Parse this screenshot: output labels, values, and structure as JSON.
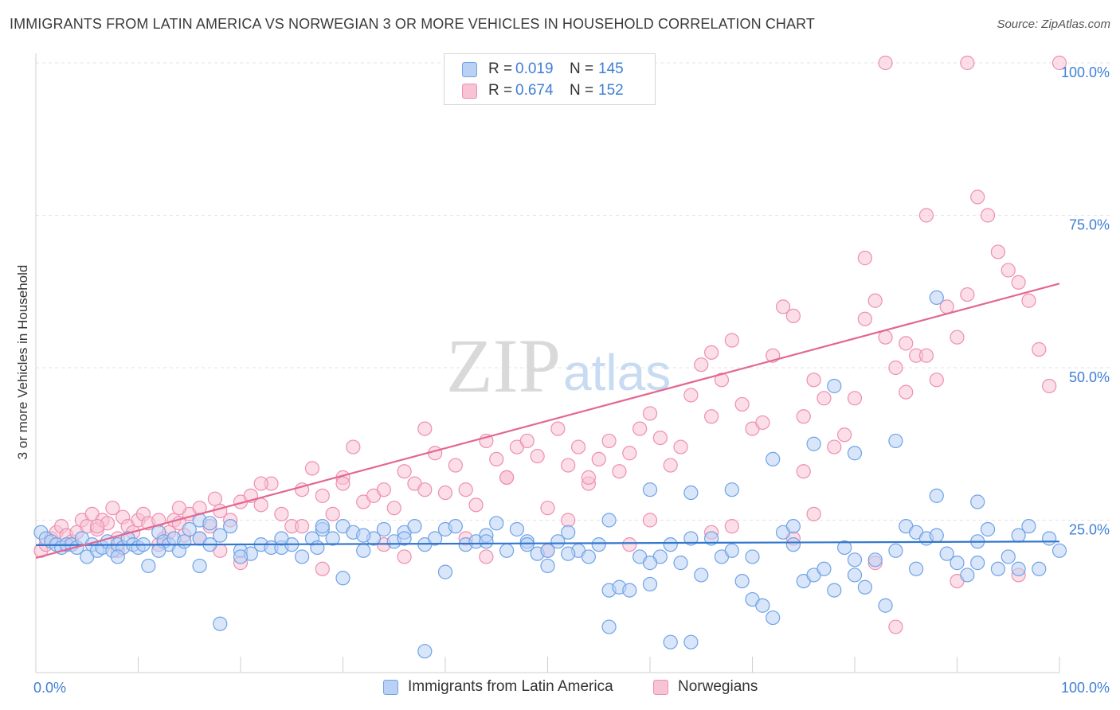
{
  "title": "IMMIGRANTS FROM LATIN AMERICA VS NORWEGIAN 3 OR MORE VEHICLES IN HOUSEHOLD CORRELATION CHART",
  "source": "Source: ZipAtlas.com",
  "watermark": {
    "zip": "ZIP",
    "atlas": "atlas"
  },
  "colors": {
    "blue": "#6fa3e6",
    "blue_fill": "#b9d1f5",
    "blue_line": "#3377cc",
    "pink": "#ee8fb0",
    "pink_fill": "#f8c3d5",
    "pink_line": "#e3678f",
    "tick_text": "#3f7fd6"
  },
  "legend": {
    "rows": [
      {
        "r_label": "R =",
        "r_value": "0.019",
        "n_label": "N =",
        "n_value": "145"
      },
      {
        "r_label": "R =",
        "r_value": "0.674",
        "n_label": "N =",
        "n_value": "152"
      }
    ]
  },
  "bottom_legend": [
    "Immigrants from Latin America",
    "Norwegians"
  ],
  "chart_data": {
    "type": "scatter",
    "title": "IMMIGRANTS FROM LATIN AMERICA VS NORWEGIAN 3 OR MORE VEHICLES IN HOUSEHOLD CORRELATION CHART",
    "xlabel": "",
    "ylabel": "3 or more Vehicles in Household",
    "xlim": [
      0,
      100
    ],
    "ylim": [
      0,
      100
    ],
    "x_tick_labels": [
      "0.0%",
      "100.0%"
    ],
    "y_tick_labels": [
      "25.0%",
      "50.0%",
      "75.0%",
      "100.0%"
    ],
    "y_ticks": [
      25,
      50,
      75,
      100
    ],
    "grid": true,
    "legend_position": "top-center",
    "series": [
      {
        "name": "Immigrants from Latin America",
        "r": 0.019,
        "n": 145,
        "trend": {
          "x": [
            0,
            100
          ],
          "y": [
            20.9,
            21.5
          ]
        },
        "points": [
          [
            0.5,
            23
          ],
          [
            1,
            22
          ],
          [
            1.5,
            21.5
          ],
          [
            2,
            21
          ],
          [
            2.5,
            20.5
          ],
          [
            3,
            21
          ],
          [
            3.5,
            21
          ],
          [
            4,
            20.5
          ],
          [
            4.5,
            22
          ],
          [
            5,
            19
          ],
          [
            5.5,
            21
          ],
          [
            6,
            20
          ],
          [
            6.5,
            20.5
          ],
          [
            7,
            21.5
          ],
          [
            7.5,
            20
          ],
          [
            8,
            21
          ],
          [
            8.5,
            20.5
          ],
          [
            9,
            22
          ],
          [
            9.5,
            21
          ],
          [
            10,
            20.5
          ],
          [
            10.5,
            21
          ],
          [
            11,
            17.5
          ],
          [
            12,
            23
          ],
          [
            12.5,
            21.5
          ],
          [
            13,
            21
          ],
          [
            13.5,
            22
          ],
          [
            14,
            20
          ],
          [
            14.5,
            21.5
          ],
          [
            15,
            23.5
          ],
          [
            16,
            22
          ],
          [
            16,
            25
          ],
          [
            17,
            24.5
          ],
          [
            17,
            21
          ],
          [
            18,
            22.5
          ],
          [
            19,
            24
          ],
          [
            20,
            20
          ],
          [
            21,
            19.5
          ],
          [
            22,
            21
          ],
          [
            23,
            20.5
          ],
          [
            24,
            20.5
          ],
          [
            25,
            21
          ],
          [
            26,
            19
          ],
          [
            27,
            22
          ],
          [
            27.5,
            20.5
          ],
          [
            28,
            23.5
          ],
          [
            29,
            22
          ],
          [
            30,
            24
          ],
          [
            31,
            23
          ],
          [
            32,
            20
          ],
          [
            33,
            22
          ],
          [
            34,
            23.5
          ],
          [
            35,
            21.5
          ],
          [
            36,
            23
          ],
          [
            37,
            24
          ],
          [
            38,
            21
          ],
          [
            39,
            22
          ],
          [
            40,
            23.5
          ],
          [
            41,
            24
          ],
          [
            42,
            21
          ],
          [
            43,
            21.5
          ],
          [
            44,
            22.5
          ],
          [
            45,
            24.5
          ],
          [
            46,
            20
          ],
          [
            47,
            23.5
          ],
          [
            48,
            21.5
          ],
          [
            49,
            19.5
          ],
          [
            50,
            20
          ],
          [
            51,
            21.5
          ],
          [
            52,
            23
          ],
          [
            53,
            20
          ],
          [
            54,
            19
          ],
          [
            55,
            21
          ],
          [
            56,
            13.5
          ],
          [
            57,
            14
          ],
          [
            58,
            13.5
          ],
          [
            59,
            19
          ],
          [
            60,
            14.5
          ],
          [
            61,
            19
          ],
          [
            62,
            21
          ],
          [
            63,
            18
          ],
          [
            64,
            22
          ],
          [
            65,
            16
          ],
          [
            66,
            22
          ],
          [
            67,
            19
          ],
          [
            68,
            20
          ],
          [
            69,
            15
          ],
          [
            70,
            12
          ],
          [
            71,
            11
          ],
          [
            72,
            9
          ],
          [
            73,
            23
          ],
          [
            74,
            24
          ],
          [
            75,
            15
          ],
          [
            76,
            16
          ],
          [
            77,
            17
          ],
          [
            78,
            13.5
          ],
          [
            79,
            20.5
          ],
          [
            80,
            16
          ],
          [
            81,
            14
          ],
          [
            82,
            18.5
          ],
          [
            83,
            11
          ],
          [
            84,
            20
          ],
          [
            85,
            24
          ],
          [
            86,
            23
          ],
          [
            87,
            22
          ],
          [
            88,
            22.5
          ],
          [
            89,
            19.5
          ],
          [
            90,
            18
          ],
          [
            91,
            16
          ],
          [
            92,
            21.5
          ],
          [
            93,
            23.5
          ],
          [
            94,
            17
          ],
          [
            95,
            19
          ],
          [
            96,
            17
          ],
          [
            97,
            24
          ],
          [
            98,
            17
          ],
          [
            99,
            22
          ],
          [
            8,
            19
          ],
          [
            12,
            20
          ],
          [
            16,
            17.5
          ],
          [
            20,
            19
          ],
          [
            24,
            22
          ],
          [
            28,
            24
          ],
          [
            32,
            22.5
          ],
          [
            36,
            22
          ],
          [
            44,
            21.5
          ],
          [
            48,
            21
          ],
          [
            52,
            19.5
          ],
          [
            56,
            25
          ],
          [
            60,
            30
          ],
          [
            64,
            29.5
          ],
          [
            68,
            30
          ],
          [
            72,
            35
          ],
          [
            76,
            37.5
          ],
          [
            80,
            36
          ],
          [
            84,
            38
          ],
          [
            88,
            29
          ],
          [
            92,
            28
          ],
          [
            96,
            22.5
          ],
          [
            100,
            20
          ],
          [
            30,
            15.5
          ],
          [
            40,
            16.5
          ],
          [
            50,
            17.5
          ],
          [
            60,
            18
          ],
          [
            70,
            19
          ],
          [
            80,
            18.5
          ],
          [
            86,
            17
          ],
          [
            92,
            18
          ],
          [
            18,
            8
          ],
          [
            38,
            3.5
          ],
          [
            56,
            7.5
          ],
          [
            62,
            5
          ],
          [
            64,
            5
          ],
          [
            78,
            47
          ],
          [
            88,
            61.5
          ],
          [
            74,
            21
          ]
        ]
      },
      {
        "name": "Norwegians",
        "r": 0.674,
        "n": 152,
        "trend": {
          "x": [
            0,
            100
          ],
          "y": [
            18.8,
            63.8
          ]
        },
        "points": [
          [
            0.5,
            20
          ],
          [
            1,
            21
          ],
          [
            1.5,
            22
          ],
          [
            2,
            23
          ],
          [
            2.5,
            24
          ],
          [
            3,
            22.5
          ],
          [
            3.5,
            21.5
          ],
          [
            4,
            23
          ],
          [
            4.5,
            25
          ],
          [
            5,
            24
          ],
          [
            5.5,
            26
          ],
          [
            6,
            23.5
          ],
          [
            6.5,
            25
          ],
          [
            7,
            24.5
          ],
          [
            7.5,
            27
          ],
          [
            8,
            22
          ],
          [
            8.5,
            25.5
          ],
          [
            9,
            24
          ],
          [
            9.5,
            23
          ],
          [
            10,
            25
          ],
          [
            10.5,
            26
          ],
          [
            11,
            24.5
          ],
          [
            12,
            25
          ],
          [
            12.5,
            22
          ],
          [
            13,
            23
          ],
          [
            13.5,
            25
          ],
          [
            14,
            24.5
          ],
          [
            14.5,
            22.5
          ],
          [
            15,
            26
          ],
          [
            16,
            27
          ],
          [
            17,
            24
          ],
          [
            17.5,
            28.5
          ],
          [
            18,
            26.5
          ],
          [
            19,
            25
          ],
          [
            20,
            28
          ],
          [
            21,
            29
          ],
          [
            22,
            27.5
          ],
          [
            23,
            31
          ],
          [
            24,
            26
          ],
          [
            25,
            24
          ],
          [
            26,
            30
          ],
          [
            27,
            33.5
          ],
          [
            28,
            29
          ],
          [
            29,
            26
          ],
          [
            30,
            32
          ],
          [
            31,
            37
          ],
          [
            32,
            28
          ],
          [
            33,
            29
          ],
          [
            34,
            30
          ],
          [
            35,
            27
          ],
          [
            36,
            33
          ],
          [
            37,
            31
          ],
          [
            38,
            40
          ],
          [
            39,
            36
          ],
          [
            40,
            29.5
          ],
          [
            41,
            34
          ],
          [
            42,
            30
          ],
          [
            43,
            27.5
          ],
          [
            44,
            38
          ],
          [
            45,
            35
          ],
          [
            46,
            32
          ],
          [
            47,
            37
          ],
          [
            48,
            38
          ],
          [
            49,
            35.5
          ],
          [
            50,
            27
          ],
          [
            51,
            40
          ],
          [
            52,
            34
          ],
          [
            53,
            37
          ],
          [
            54,
            31
          ],
          [
            55,
            35
          ],
          [
            56,
            38
          ],
          [
            57,
            33
          ],
          [
            58,
            36
          ],
          [
            59,
            40
          ],
          [
            60,
            42.5
          ],
          [
            61,
            38.5
          ],
          [
            62,
            34
          ],
          [
            63,
            37
          ],
          [
            64,
            45.5
          ],
          [
            65,
            50.5
          ],
          [
            66,
            52.5
          ],
          [
            67,
            48
          ],
          [
            68,
            54.5
          ],
          [
            69,
            44
          ],
          [
            70,
            40
          ],
          [
            71,
            41
          ],
          [
            72,
            52
          ],
          [
            73,
            60
          ],
          [
            74,
            58.5
          ],
          [
            75,
            33
          ],
          [
            76,
            48
          ],
          [
            77,
            45
          ],
          [
            78,
            37
          ],
          [
            79,
            39
          ],
          [
            80,
            45
          ],
          [
            81,
            58
          ],
          [
            82,
            61
          ],
          [
            83,
            55
          ],
          [
            84,
            50
          ],
          [
            85,
            46
          ],
          [
            86,
            52
          ],
          [
            87,
            52
          ],
          [
            88,
            48
          ],
          [
            89,
            60
          ],
          [
            90,
            55
          ],
          [
            91,
            62
          ],
          [
            92,
            78
          ],
          [
            93,
            75
          ],
          [
            94,
            69
          ],
          [
            95,
            66
          ],
          [
            96,
            64
          ],
          [
            97,
            61
          ],
          [
            98,
            53
          ],
          [
            99,
            47
          ],
          [
            100,
            100
          ],
          [
            83,
            100
          ],
          [
            91,
            100
          ],
          [
            87,
            75
          ],
          [
            81,
            68
          ],
          [
            85,
            54
          ],
          [
            75,
            42
          ],
          [
            66,
            42
          ],
          [
            54,
            32
          ],
          [
            46,
            32
          ],
          [
            38,
            30
          ],
          [
            30,
            31
          ],
          [
            22,
            31
          ],
          [
            14,
            27
          ],
          [
            6,
            24
          ],
          [
            18,
            20
          ],
          [
            26,
            24
          ],
          [
            34,
            21
          ],
          [
            42,
            22
          ],
          [
            50,
            20
          ],
          [
            58,
            21
          ],
          [
            66,
            23
          ],
          [
            74,
            22
          ],
          [
            82,
            18
          ],
          [
            90,
            15
          ],
          [
            96,
            16
          ],
          [
            84,
            7.5
          ],
          [
            8,
            20
          ],
          [
            12,
            21
          ],
          [
            16,
            22
          ],
          [
            20,
            18
          ],
          [
            28,
            17
          ],
          [
            36,
            19
          ],
          [
            44,
            19
          ],
          [
            52,
            25
          ],
          [
            60,
            25
          ],
          [
            68,
            24
          ],
          [
            76,
            26
          ]
        ]
      }
    ]
  }
}
